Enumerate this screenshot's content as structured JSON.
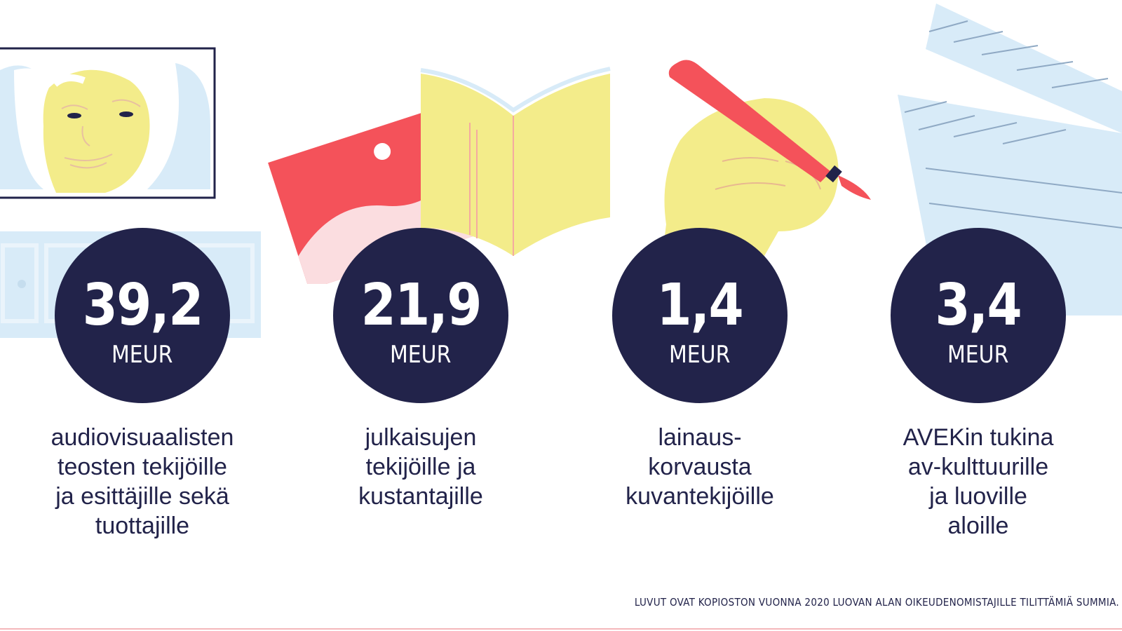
{
  "stats": [
    {
      "amount": "39,2",
      "unit": "MEUR",
      "lines": [
        "audiovisuaalisten",
        "teosten tekijöille",
        "ja esittäjille sekä",
        "tuottajille"
      ]
    },
    {
      "amount": "21,9",
      "unit": "MEUR",
      "lines": [
        "julkaisujen",
        "tekijöille ja",
        "kustantajille"
      ]
    },
    {
      "amount": "1,4",
      "unit": "MEUR",
      "lines": [
        "lainaus-",
        "korvausta",
        "kuvantekijöille"
      ]
    },
    {
      "amount": "3,4",
      "unit": "MEUR",
      "lines": [
        "AVEKin tukina",
        "av-kulttuurille",
        "ja luoville",
        "aloille"
      ]
    }
  ],
  "footnote": "LUVUT OVAT KOPIOSTON VUONNA 2020 LUOVAN ALAN OIKEUDENOMISTAJILLE TILITTÄMIÄ SUMMIA.",
  "colors": {
    "navy": "#22234a",
    "yellow": "#f3ec8a",
    "red": "#f4525a",
    "pink": "#fbdde0",
    "lightblue": "#d8ebf8"
  },
  "illustrations": [
    "tv-face-icon",
    "book-icon",
    "hand-paintbrush-icon",
    "clapperboard-icon"
  ]
}
